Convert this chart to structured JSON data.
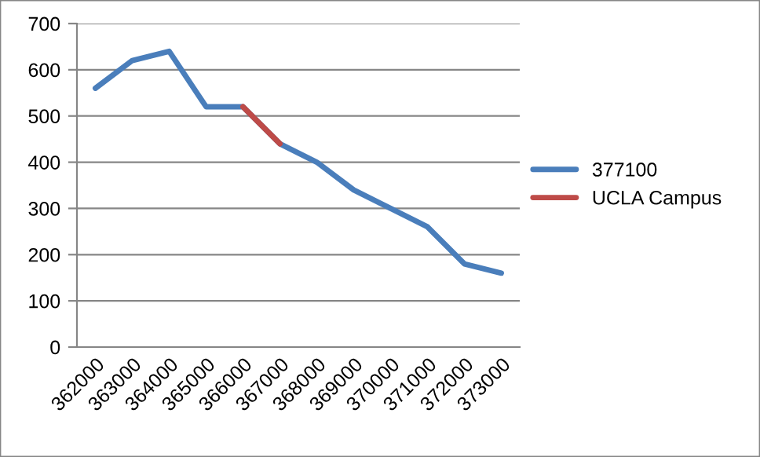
{
  "chart_data": {
    "type": "line",
    "categories": [
      "362000",
      "363000",
      "364000",
      "365000",
      "366000",
      "367000",
      "368000",
      "369000",
      "370000",
      "371000",
      "372000",
      "373000"
    ],
    "series": [
      {
        "name": "377100",
        "color": "#4a7ebb",
        "values": [
          560,
          620,
          640,
          520,
          520,
          440,
          400,
          340,
          300,
          260,
          180,
          160
        ]
      },
      {
        "name": "UCLA Campus",
        "color": "#be4b48",
        "values": [
          null,
          null,
          null,
          null,
          520,
          440,
          null,
          null,
          null,
          null,
          null,
          null
        ]
      }
    ],
    "ylim": [
      0,
      700
    ],
    "yticks": [
      0,
      100,
      200,
      300,
      400,
      500,
      600,
      700
    ],
    "grid": "y",
    "legend": "right",
    "marker": "none",
    "line_style": "solid"
  }
}
